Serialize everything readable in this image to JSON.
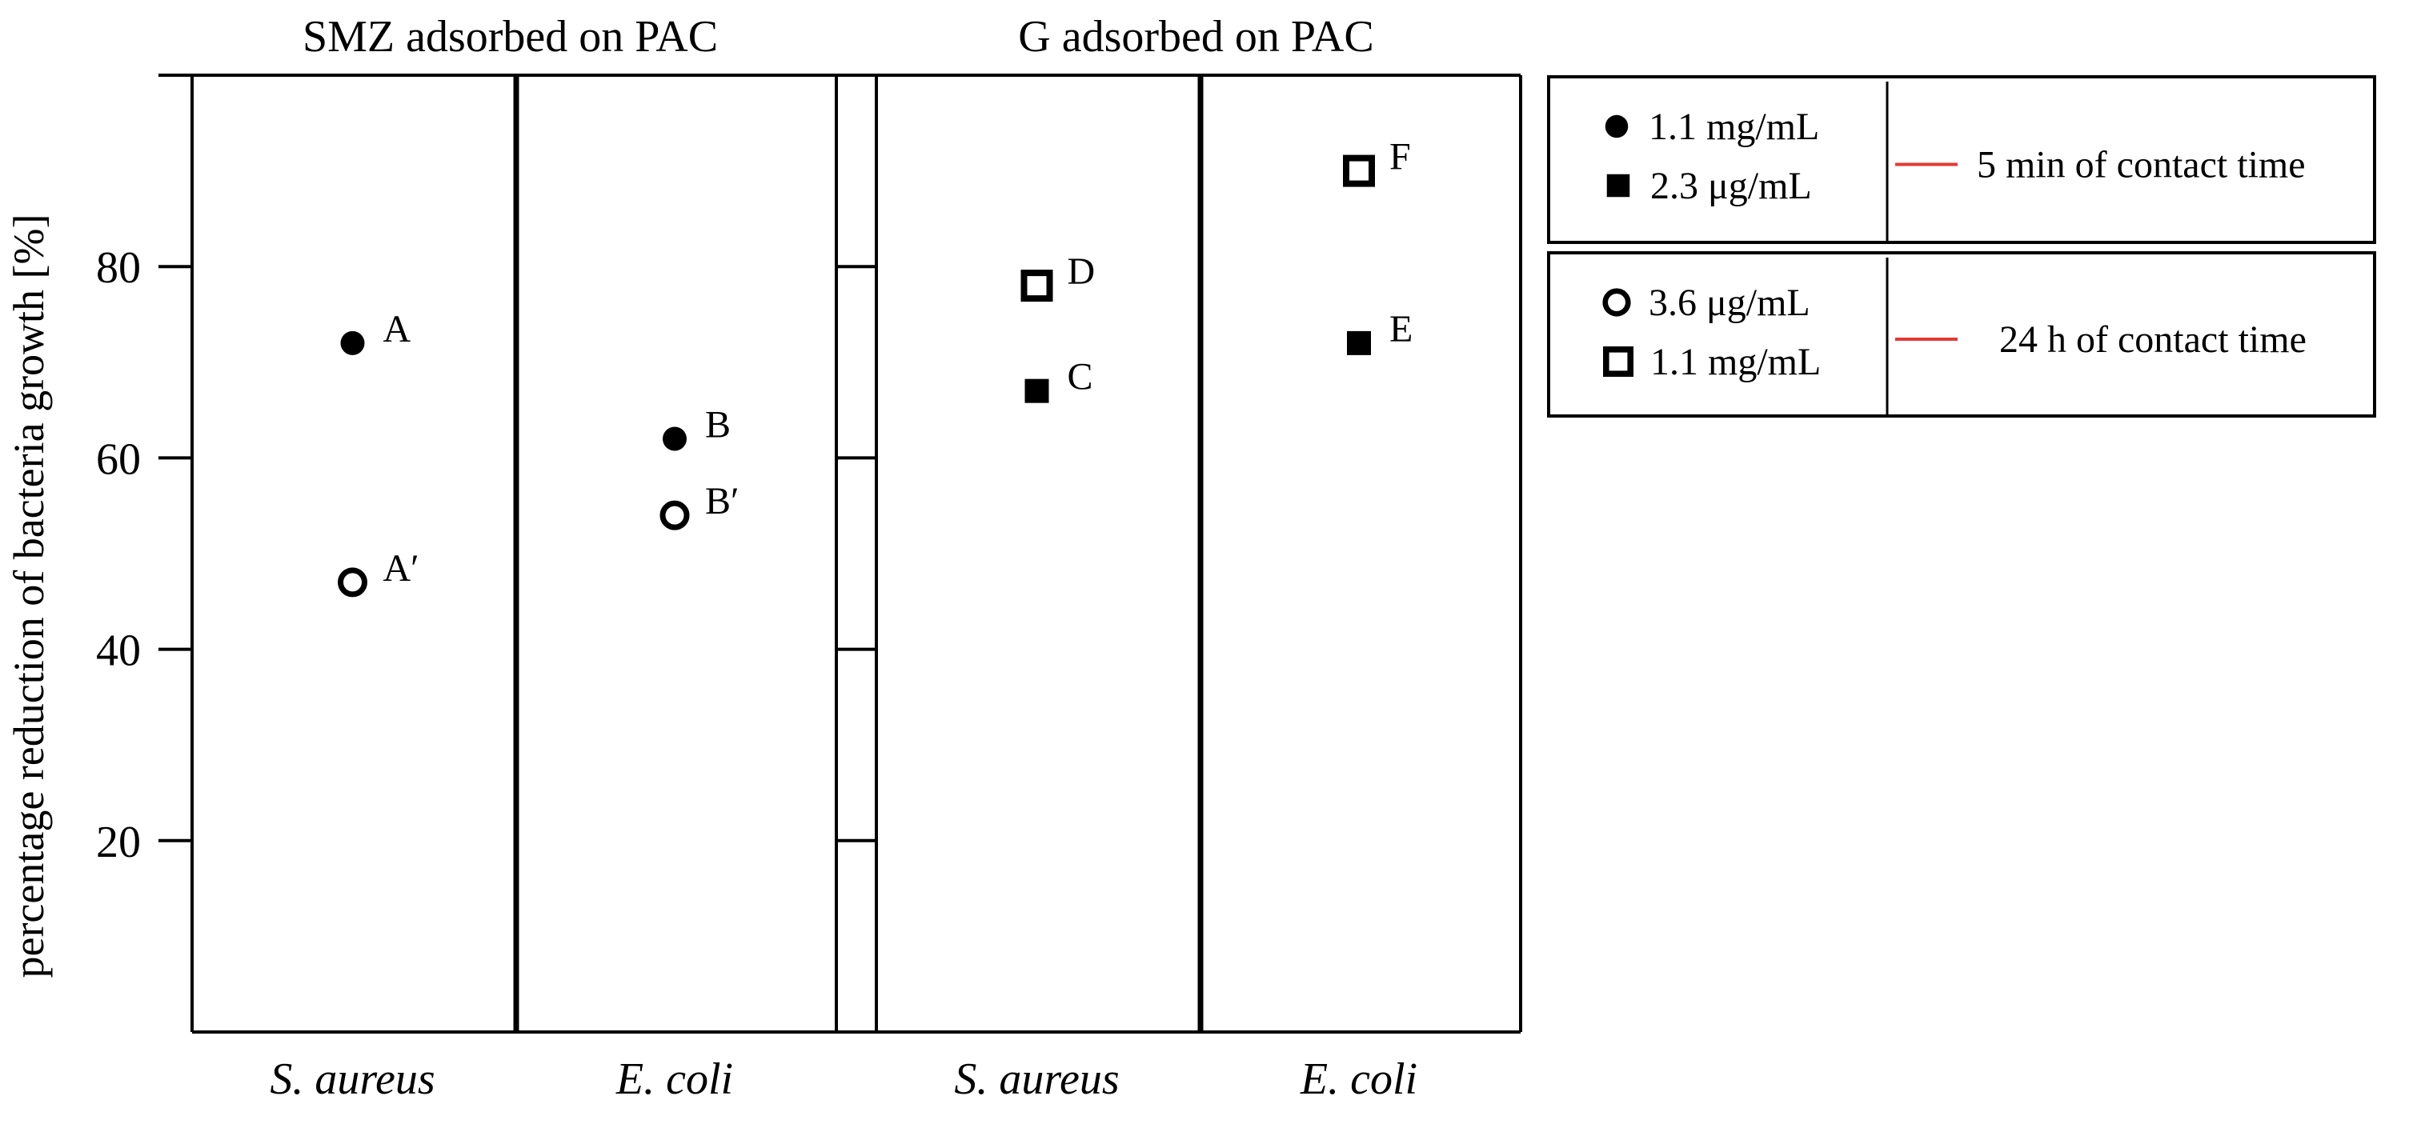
{
  "chart_data": {
    "type": "scatter",
    "ylabel": "percentage reduction of bacteria growth [%]",
    "ylim": [
      0,
      100
    ],
    "yticks": [
      20,
      40,
      60,
      80
    ],
    "groups": [
      {
        "title": "SMZ adsorbed on PAC",
        "categories": [
          "S. aureus",
          "E. coli"
        ]
      },
      {
        "title": "G adsorbed on PAC",
        "categories": [
          "S. aureus",
          "E. coli"
        ]
      }
    ],
    "points": [
      {
        "label": "A",
        "group": 0,
        "category": 0,
        "value": 72,
        "marker": "filled-circle"
      },
      {
        "label": "A′",
        "group": 0,
        "category": 0,
        "value": 47,
        "marker": "open-circle"
      },
      {
        "label": "B",
        "group": 0,
        "category": 1,
        "value": 62,
        "marker": "filled-circle"
      },
      {
        "label": "B′",
        "group": 0,
        "category": 1,
        "value": 54,
        "marker": "open-circle"
      },
      {
        "label": "C",
        "group": 1,
        "category": 0,
        "value": 67,
        "marker": "filled-square"
      },
      {
        "label": "D",
        "group": 1,
        "category": 0,
        "value": 78,
        "marker": "open-square"
      },
      {
        "label": "E",
        "group": 1,
        "category": 1,
        "value": 72,
        "marker": "filled-square"
      },
      {
        "label": "F",
        "group": 1,
        "category": 1,
        "value": 90,
        "marker": "open-square"
      }
    ],
    "legend": {
      "placement": "right",
      "boxes": [
        {
          "entries": [
            {
              "marker": "filled-circle",
              "label": "1.1 mg/mL"
            },
            {
              "marker": "filled-square",
              "label": "2.3 μg/mL"
            }
          ],
          "description": "5 min of contact time"
        },
        {
          "entries": [
            {
              "marker": "open-circle",
              "label": "3.6 μg/mL"
            },
            {
              "marker": "open-square",
              "label": "1.1 mg/mL"
            }
          ],
          "description": "24 h of contact time"
        }
      ]
    },
    "colors": {
      "ink": "#000000",
      "connector": "#e53935",
      "background": "#ffffff"
    }
  }
}
